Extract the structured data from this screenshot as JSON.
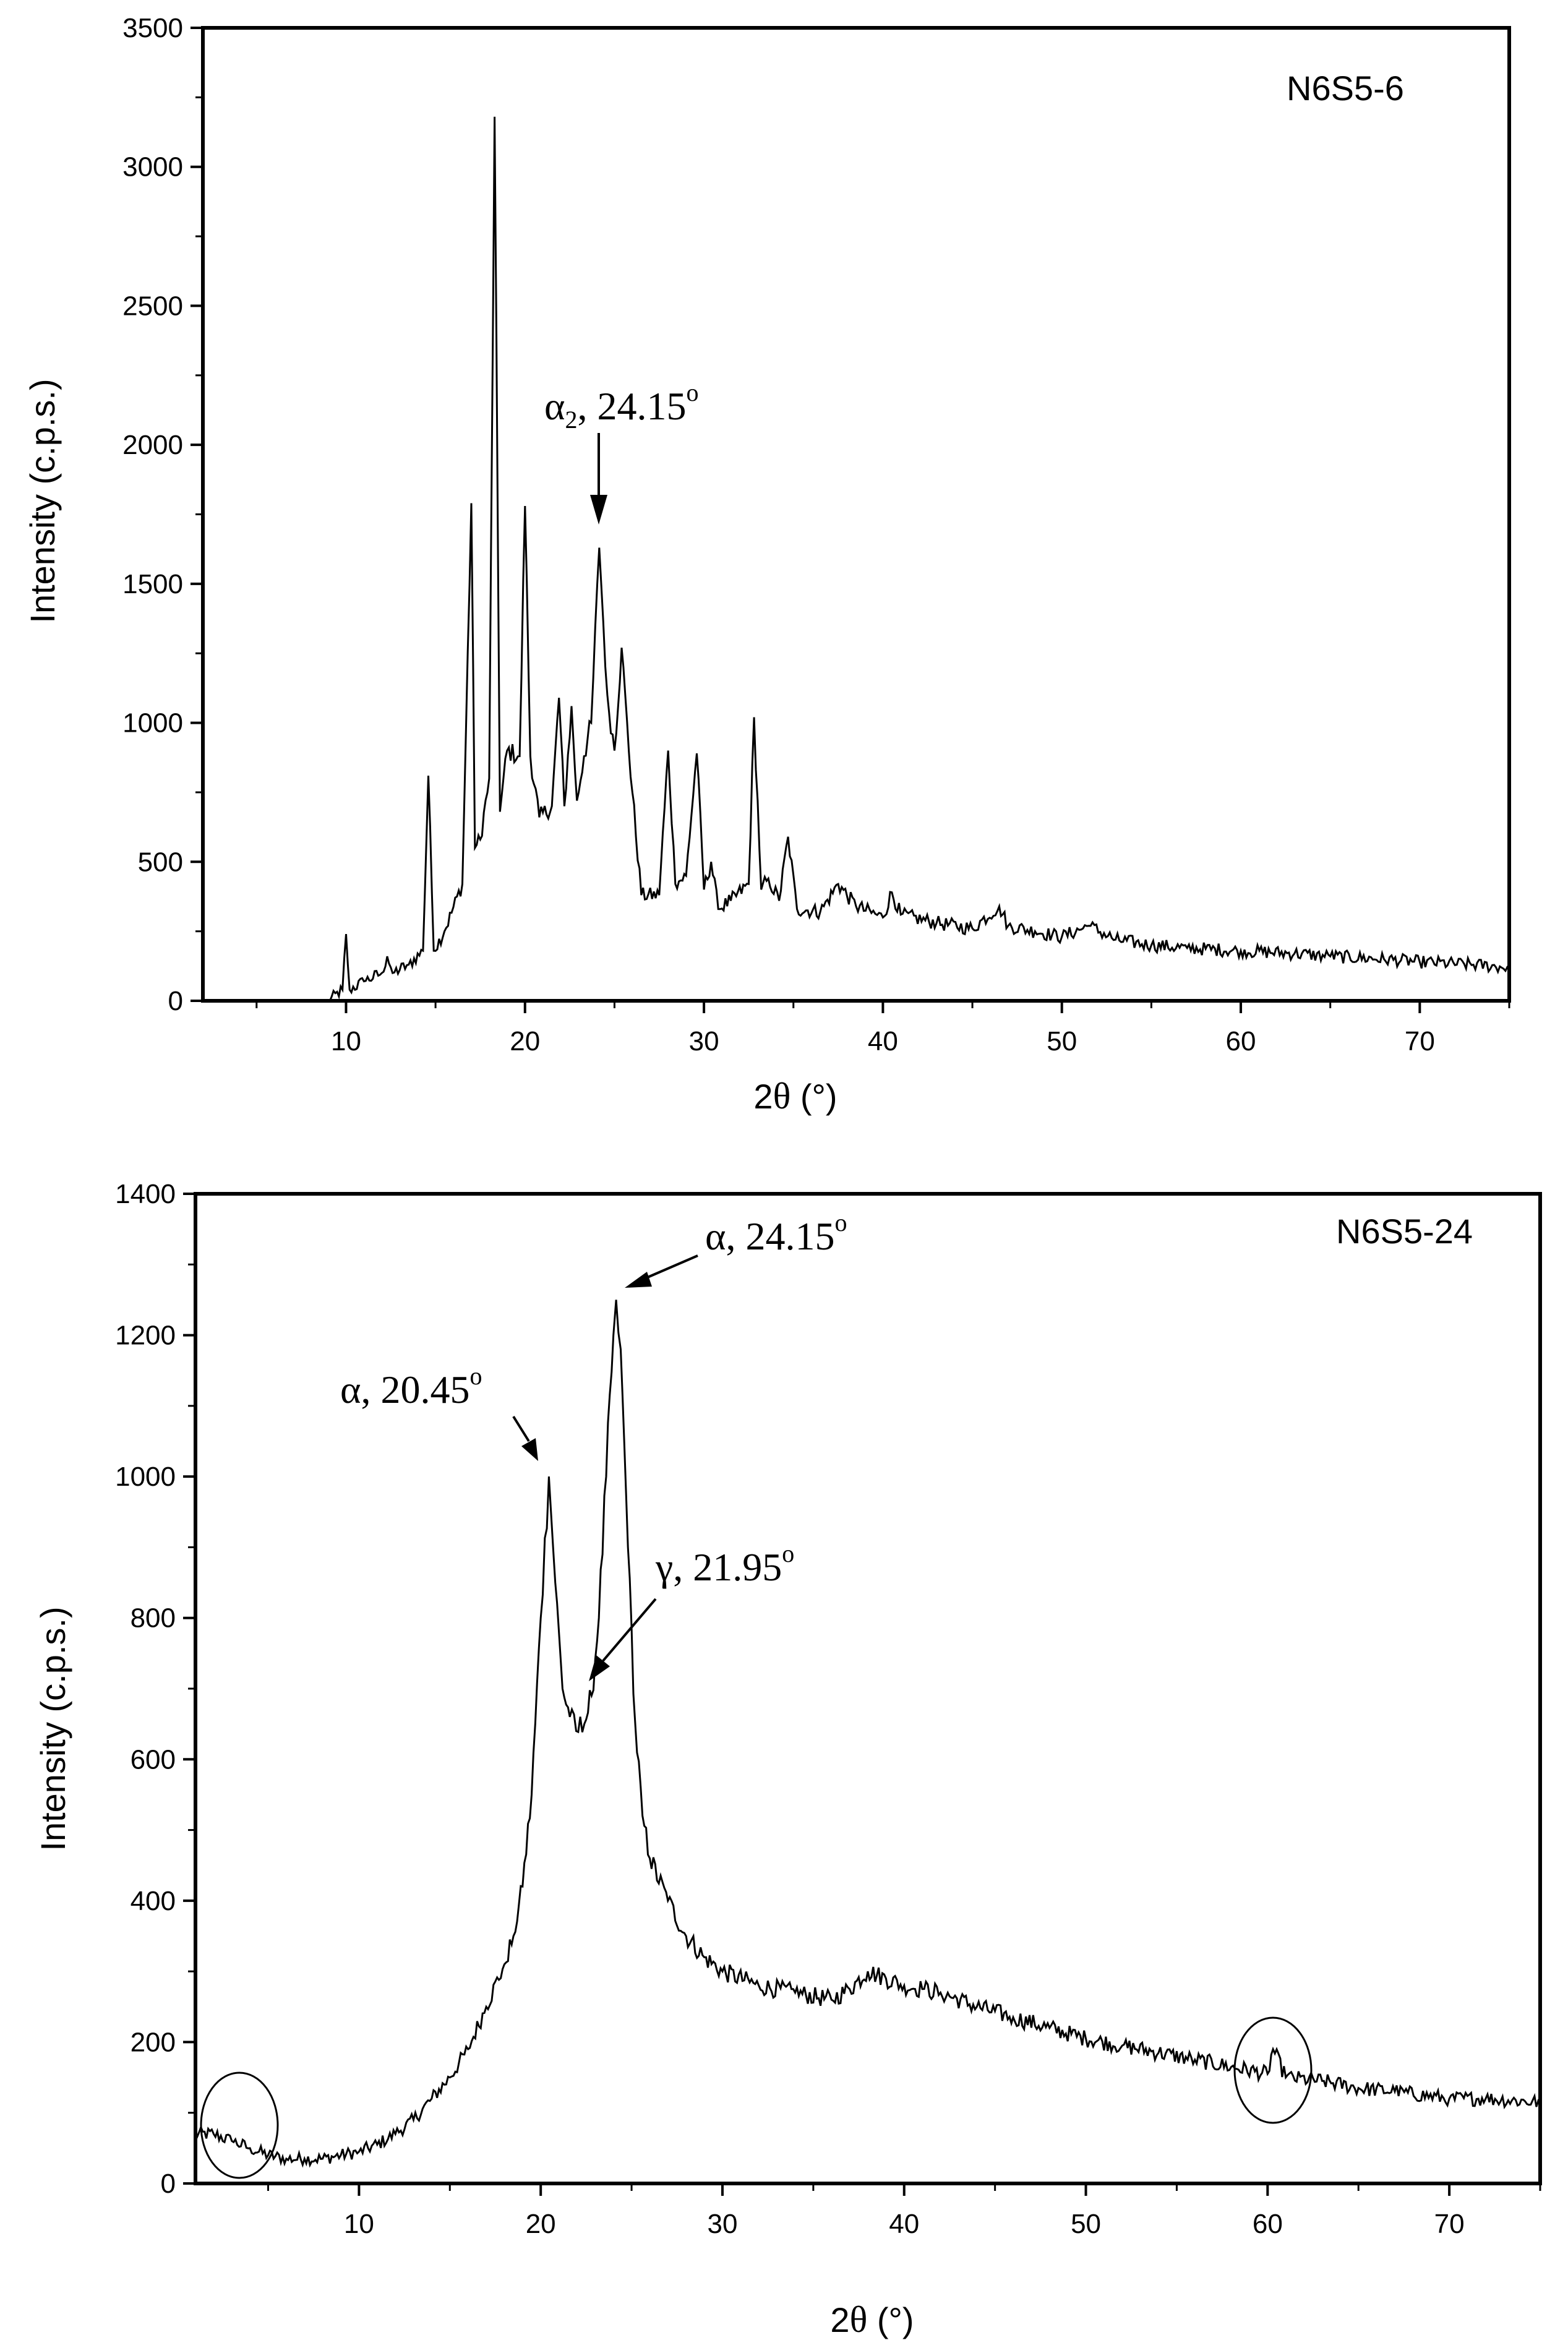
{
  "chart_data": [
    {
      "type": "line",
      "sample_label": "N6S5-6",
      "xlabel_prefix": "2",
      "xlabel_symbol": "θ",
      "xlabel_suffix": " (°)",
      "ylabel": "Intensity (c.p.s.)",
      "xlim": [
        2,
        75
      ],
      "ylim": [
        0,
        3500
      ],
      "x_ticks": [
        10,
        20,
        30,
        40,
        50,
        60,
        70
      ],
      "y_ticks": [
        0,
        500,
        1000,
        1500,
        2000,
        2500,
        3000,
        3500
      ],
      "series": [
        {
          "name": "N6S5-6",
          "x": [
            9.0,
            9.8,
            10.0,
            10.2,
            11.0,
            12.0,
            12.3,
            12.6,
            13.5,
            14.3,
            14.6,
            14.9,
            15.5,
            16.5,
            17.0,
            17.2,
            17.5,
            18.0,
            18.3,
            18.6,
            19.0,
            19.7,
            20.0,
            20.3,
            20.8,
            21.5,
            21.9,
            22.2,
            22.6,
            22.9,
            23.3,
            23.7,
            24.15,
            24.6,
            25.0,
            25.4,
            25.8,
            26.5,
            27.5,
            28.0,
            28.4,
            29.0,
            29.6,
            30.0,
            30.4,
            30.8,
            31.5,
            32.5,
            32.8,
            33.2,
            33.6,
            34.2,
            34.7,
            35.2,
            36.5,
            37.5,
            38.5,
            40.0,
            40.5,
            41.0,
            43.0,
            45.0,
            46.5,
            47.0,
            48.5,
            50.0,
            51.5,
            53.0,
            55.0,
            57.0,
            60.0,
            63.0,
            65.0,
            68.0,
            70.0,
            73.0,
            75.0
          ],
          "y": [
            0,
            40,
            240,
            40,
            70,
            100,
            160,
            100,
            130,
            180,
            810,
            180,
            250,
            420,
            1790,
            550,
            580,
            800,
            3180,
            680,
            900,
            880,
            1780,
            880,
            660,
            700,
            1090,
            700,
            1060,
            720,
            880,
            1000,
            1630,
            1100,
            900,
            1270,
            900,
            380,
            380,
            900,
            420,
            450,
            890,
            400,
            500,
            330,
            360,
            420,
            1020,
            400,
            440,
            360,
            590,
            330,
            320,
            420,
            340,
            300,
            390,
            310,
            280,
            260,
            340,
            270,
            250,
            230,
            270,
            220,
            200,
            190,
            180,
            170,
            160,
            150,
            140,
            130,
            120
          ]
        }
      ],
      "annotations": [
        {
          "greek": "α",
          "subscript": "2",
          "text": ", 24.15",
          "sup": "o",
          "x": 24.15,
          "y": 1630
        }
      ]
    },
    {
      "type": "line",
      "sample_label": "N6S5-24",
      "xlabel_prefix": "2",
      "xlabel_symbol": "θ",
      "xlabel_suffix": " (°)",
      "ylabel": "Intensity (c.p.s.)",
      "xlim": [
        1,
        75
      ],
      "ylim": [
        0,
        1400
      ],
      "x_ticks": [
        10,
        20,
        30,
        40,
        50,
        60,
        70
      ],
      "y_ticks": [
        0,
        200,
        400,
        600,
        800,
        1000,
        1200,
        1400
      ],
      "series": [
        {
          "name": "N6S5-24",
          "x": [
            1.0,
            2.0,
            3.0,
            4.0,
            5.0,
            6.0,
            7.0,
            8.0,
            9.0,
            10.0,
            11.0,
            12.0,
            13.0,
            14.0,
            15.0,
            16.0,
            17.0,
            18.0,
            18.5,
            19.0,
            19.5,
            20.0,
            20.45,
            20.8,
            21.2,
            21.6,
            21.95,
            22.4,
            22.8,
            23.2,
            23.6,
            24.0,
            24.15,
            24.4,
            24.8,
            25.2,
            25.6,
            26.0,
            27.0,
            28.0,
            29.0,
            30.0,
            32.0,
            34.0,
            36.0,
            37.0,
            38.0,
            39.0,
            40.0,
            41.0,
            42.0,
            44.0,
            46.0,
            48.0,
            50.0,
            52.0,
            54.0,
            56.0,
            58.0,
            60.0,
            60.3,
            61.0,
            63.0,
            65.0,
            67.0,
            70.0,
            72.0,
            75.0
          ],
          "y": [
            70,
            70,
            60,
            50,
            40,
            35,
            35,
            35,
            40,
            45,
            55,
            70,
            90,
            120,
            150,
            190,
            250,
            310,
            350,
            420,
            550,
            800,
            1000,
            850,
            700,
            660,
            640,
            650,
            690,
            800,
            1000,
            1200,
            1250,
            1180,
            900,
            650,
            520,
            460,
            400,
            350,
            320,
            300,
            280,
            270,
            260,
            275,
            300,
            290,
            280,
            275,
            270,
            250,
            235,
            220,
            205,
            195,
            185,
            175,
            165,
            155,
            190,
            150,
            145,
            135,
            130,
            120,
            120,
            115
          ]
        }
      ],
      "annotations": [
        {
          "greek": "α",
          "subscript": "",
          "text": ", 24.15",
          "sup": "o",
          "x": 24.15,
          "y": 1250
        },
        {
          "greek": "α",
          "subscript": "",
          "text": ", 20.45",
          "sup": "o",
          "x": 20.45,
          "y": 1000
        },
        {
          "greek": "γ",
          "subscript": "",
          "text": ", 21.95",
          "sup": "o",
          "x": 21.95,
          "y": 680
        }
      ],
      "circled_regions": [
        {
          "x": 3.5,
          "y": 80
        },
        {
          "x": 60.3,
          "y": 160
        }
      ]
    }
  ]
}
